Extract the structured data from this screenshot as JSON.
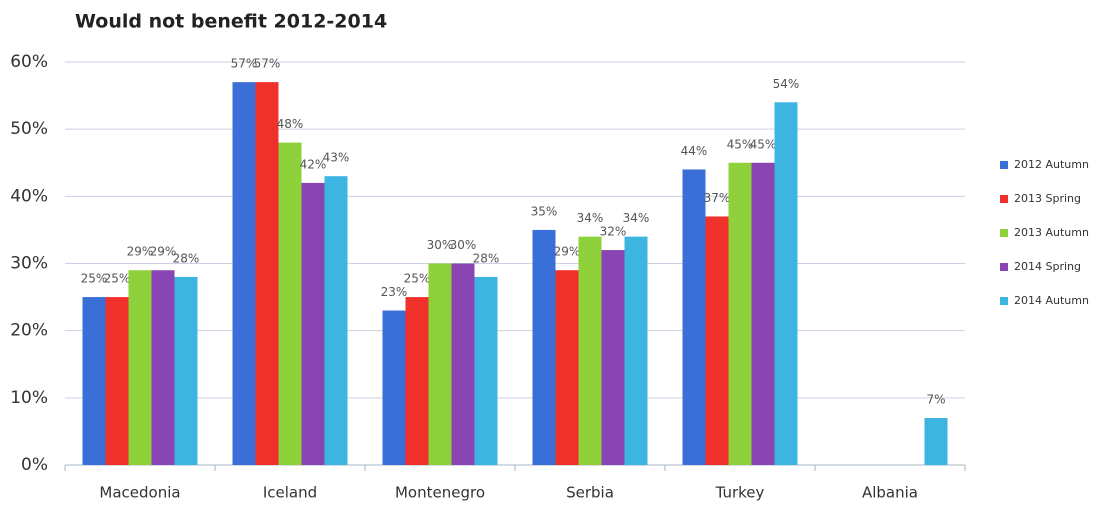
{
  "chart_data": {
    "type": "bar",
    "title": "Would not benefit 2012-2014",
    "categories": [
      "Macedonia",
      "Iceland",
      "Montenegro",
      "Serbia",
      "Turkey",
      "Albania"
    ],
    "series": [
      {
        "name": "2012 Autumn",
        "color": "#3a6fd8",
        "values": [
          25,
          57,
          23,
          35,
          44,
          null
        ],
        "value_labels": [
          "25%",
          "57%",
          "23%",
          "35%",
          "44%",
          null
        ]
      },
      {
        "name": "2013 Spring",
        "color": "#f0302a",
        "values": [
          25,
          57,
          25,
          29,
          37,
          null
        ],
        "value_labels": [
          "25%",
          "57%",
          "25%",
          "29%",
          "37%",
          null
        ]
      },
      {
        "name": "2013 Autumn",
        "color": "#8fd13a",
        "values": [
          29,
          48,
          30,
          34,
          45,
          null
        ],
        "value_labels": [
          "29%",
          "48%",
          "30%",
          "34%",
          "45%",
          null
        ]
      },
      {
        "name": "2014 Spring",
        "color": "#8a45b5",
        "values": [
          29,
          42,
          30,
          32,
          45,
          null
        ],
        "value_labels": [
          "29%",
          "42%",
          "30%",
          "32%",
          "45%",
          null
        ]
      },
      {
        "name": "2014 Autumn",
        "color": "#3cb5e0",
        "values": [
          28,
          43,
          28,
          34,
          54,
          7
        ],
        "value_labels": [
          "28%",
          "43%",
          "28%",
          "34%",
          "54%",
          "7%"
        ]
      }
    ],
    "ylim": [
      0,
      60
    ],
    "yticks": [
      {
        "value": 0,
        "label": "0%"
      },
      {
        "value": 10,
        "label": "10%"
      },
      {
        "value": 20,
        "label": "20%"
      },
      {
        "value": 30,
        "label": "30%"
      },
      {
        "value": 40,
        "label": "40%"
      },
      {
        "value": 50,
        "label": "50%"
      },
      {
        "value": 60,
        "label": "60%"
      }
    ],
    "grid": true,
    "legend": "right"
  }
}
